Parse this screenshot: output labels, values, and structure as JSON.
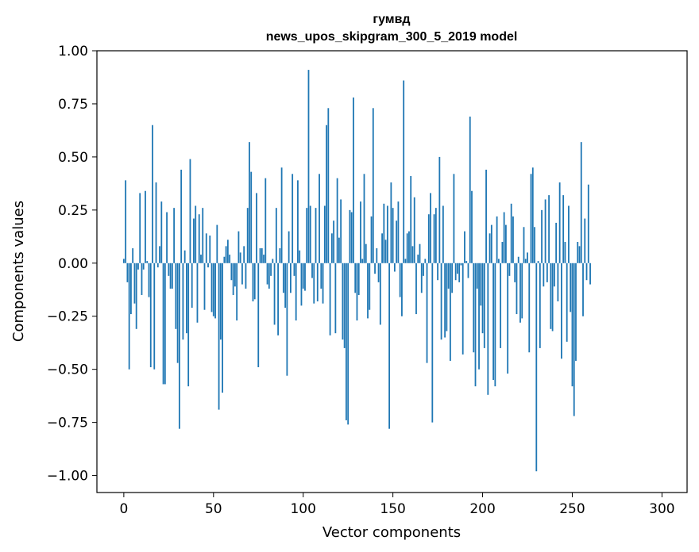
{
  "chart_data": {
    "type": "bar",
    "title": "гумвд",
    "subtitle": "news_upos_skipgram_300_5_2019 model",
    "xlabel": "Vector components",
    "ylabel": "Components values",
    "xlim": [
      -15,
      314
    ],
    "ylim": [
      -1.08,
      1.0
    ],
    "x_ticks": [
      0,
      50,
      100,
      150,
      200,
      250,
      300
    ],
    "y_ticks": [
      -1.0,
      -0.75,
      -0.5,
      -0.25,
      0.0,
      0.25,
      0.5,
      0.75,
      1.0
    ],
    "x_tick_labels": [
      "0",
      "50",
      "100",
      "150",
      "200",
      "250",
      "300"
    ],
    "y_tick_labels": [
      "−1.00",
      "−0.75",
      "−0.50",
      "−0.25",
      "0.00",
      "0.25",
      "0.50",
      "0.75",
      "1.00"
    ],
    "grid": false,
    "bar_color": "#1f77b4",
    "values": [
      0.02,
      0.39,
      -0.09,
      -0.5,
      -0.24,
      0.07,
      -0.19,
      -0.31,
      -0.03,
      0.33,
      -0.15,
      -0.03,
      0.34,
      0.01,
      -0.16,
      -0.49,
      0.65,
      -0.5,
      0.38,
      -0.02,
      0.08,
      0.29,
      -0.57,
      -0.57,
      0.24,
      -0.06,
      -0.12,
      -0.12,
      0.26,
      -0.31,
      -0.47,
      -0.78,
      0.44,
      -0.36,
      0.06,
      -0.33,
      -0.58,
      0.49,
      -0.21,
      0.21,
      0.27,
      -0.28,
      0.23,
      0.04,
      0.26,
      -0.22,
      0.14,
      -0.02,
      0.13,
      -0.23,
      -0.25,
      -0.26,
      0.18,
      -0.69,
      -0.36,
      -0.61,
      0.03,
      0.08,
      0.11,
      0.04,
      -0.08,
      -0.15,
      -0.11,
      -0.27,
      0.15,
      0.05,
      -0.1,
      0.08,
      -0.12,
      0.26,
      0.57,
      0.43,
      -0.18,
      -0.17,
      0.33,
      -0.49,
      0.07,
      0.07,
      0.04,
      0.4,
      -0.1,
      -0.12,
      -0.06,
      0.02,
      -0.29,
      0.26,
      -0.34,
      0.07,
      0.45,
      -0.14,
      -0.21,
      -0.53,
      0.15,
      -0.14,
      0.42,
      -0.06,
      -0.27,
      0.39,
      0.06,
      -0.2,
      -0.12,
      -0.13,
      0.26,
      0.91,
      0.27,
      -0.07,
      -0.19,
      0.26,
      -0.18,
      0.42,
      -0.12,
      -0.19,
      0.27,
      0.65,
      0.73,
      -0.34,
      0.14,
      0.2,
      -0.33,
      0.4,
      0.12,
      0.3,
      -0.36,
      -0.4,
      -0.74,
      -0.76,
      0.25,
      0.24,
      0.78,
      -0.14,
      -0.27,
      -0.15,
      0.29,
      0.02,
      0.42,
      0.09,
      -0.26,
      -0.22,
      0.22,
      0.73,
      -0.05,
      0.07,
      -0.09,
      -0.29,
      0.14,
      0.28,
      0.11,
      0.27,
      -0.78,
      0.38,
      0.26,
      -0.04,
      0.2,
      0.29,
      -0.16,
      -0.25,
      0.86,
      0.02,
      0.14,
      0.15,
      0.41,
      0.08,
      0.31,
      -0.24,
      0.04,
      0.09,
      -0.14,
      -0.06,
      0.02,
      -0.47,
      0.23,
      0.33,
      -0.75,
      0.23,
      0.26,
      -0.08,
      0.5,
      -0.36,
      0.27,
      -0.35,
      -0.32,
      -0.12,
      -0.46,
      -0.14,
      0.42,
      -0.08,
      -0.05,
      -0.09,
      -0.01,
      -0.43,
      0.15,
      0.01,
      -0.07,
      0.69,
      0.34,
      -0.42,
      -0.58,
      -0.12,
      -0.5,
      -0.2,
      -0.33,
      -0.4,
      0.44,
      -0.62,
      0.14,
      0.18,
      -0.55,
      -0.58,
      0.22,
      0.02,
      -0.4,
      0.1,
      0.24,
      0.18,
      -0.52,
      -0.06,
      0.28,
      0.22,
      -0.09,
      -0.24,
      0.03,
      -0.28,
      -0.26,
      0.17,
      0.02,
      0.05,
      -0.42,
      0.42,
      0.45,
      0.17,
      -0.98,
      0.01,
      -0.4,
      0.25,
      -0.11,
      0.3,
      -0.09,
      0.32,
      -0.31,
      -0.32,
      -0.11,
      0.19,
      -0.18,
      0.38,
      -0.45,
      0.32,
      0.1,
      -0.37,
      0.27,
      -0.23,
      -0.58,
      -0.72,
      -0.46,
      0.1,
      0.08,
      0.57,
      -0.25,
      0.21,
      -0.08,
      0.37,
      -0.1
    ]
  }
}
